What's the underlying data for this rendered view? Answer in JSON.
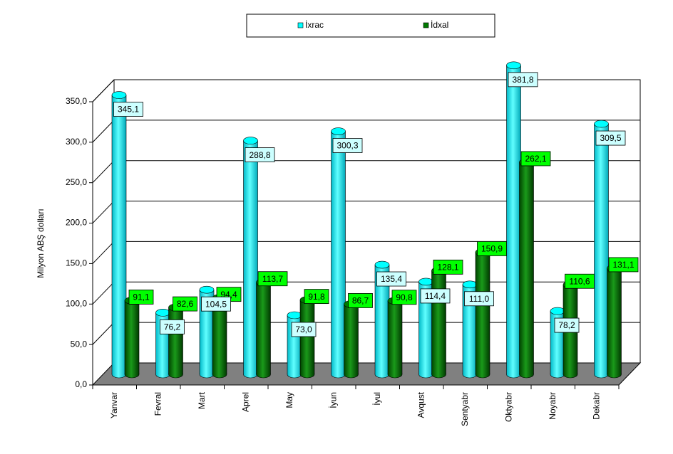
{
  "chart_data": {
    "type": "bar",
    "y_label": "Milyon ABŞ dolları",
    "categories": [
      "Yanvar",
      "Fevral",
      "Mart",
      "Aprel",
      "May",
      "İyun",
      "İyul",
      "Avqust",
      "Sentyabr",
      "Oktyabr",
      "Noyabr",
      "Dekabr"
    ],
    "series": [
      {
        "name": "İxrac",
        "color": "#00ffff",
        "values": [
          345.1,
          76.2,
          104.5,
          288.8,
          73.0,
          300.3,
          135.4,
          114.4,
          111.0,
          381.8,
          78.2,
          309.5
        ],
        "value_labels": [
          "345,1",
          "76,2",
          "104,5",
          "288,8",
          "73,0",
          "300,3",
          "135,4",
          "114,4",
          "111,0",
          "381,8",
          "78,2",
          "309,5"
        ]
      },
      {
        "name": "İdxal",
        "color": "#007a00",
        "values": [
          91.1,
          82.6,
          94.4,
          113.7,
          91.8,
          86.7,
          90.8,
          128.1,
          150.9,
          262.1,
          110.6,
          131.1
        ],
        "value_labels": [
          "91,1",
          "82,6",
          "94,4",
          "113,7",
          "91,8",
          "86,7",
          "90,8",
          "128,1",
          "150,9",
          "262,1",
          "110,6",
          "131,1"
        ]
      }
    ],
    "ylim": [
      0,
      350
    ],
    "yticks": [
      {
        "value": 0,
        "label": "0,0"
      },
      {
        "value": 50,
        "label": "50,0"
      },
      {
        "value": 100,
        "label": "100,0"
      },
      {
        "value": 150,
        "label": "150,0"
      },
      {
        "value": 200,
        "label": "200,0"
      },
      {
        "value": 250,
        "label": "250,0"
      },
      {
        "value": 300,
        "label": "300,0"
      },
      {
        "value": 350,
        "label": "350,0"
      }
    ],
    "grid": true,
    "legend": "top"
  }
}
